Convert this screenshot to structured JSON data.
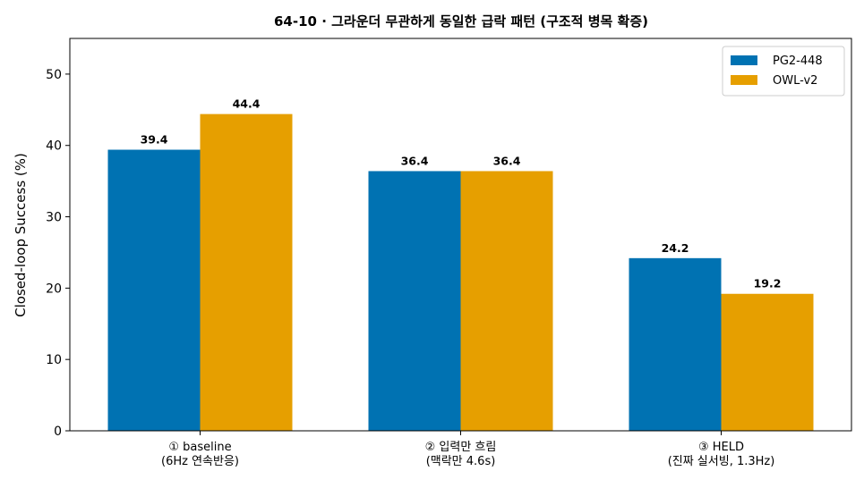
{
  "chart_data": {
    "type": "bar",
    "title": "64-10 · 그라운더 무관하게 동일한 급락 패턴 (구조적 병목 확증)",
    "ylabel": "Closed-loop Success (%)",
    "xlabel": "",
    "ylim": [
      0,
      55
    ],
    "yticks": [
      0,
      10,
      20,
      30,
      40,
      50
    ],
    "grid": false,
    "legend_position": "top-right",
    "categories": [
      [
        "① baseline",
        "(6Hz 연속반응)"
      ],
      [
        "② 입력만 흐림",
        "(맥락만 4.6s)"
      ],
      [
        "③ HELD",
        "(진짜 실서빙, 1.3Hz)"
      ]
    ],
    "series": [
      {
        "name": "PG2-448",
        "color": "#0072b2",
        "values": [
          39.4,
          36.4,
          24.2
        ]
      },
      {
        "name": "OWL-v2",
        "color": "#e69f00",
        "values": [
          44.4,
          36.4,
          19.2
        ]
      }
    ]
  }
}
